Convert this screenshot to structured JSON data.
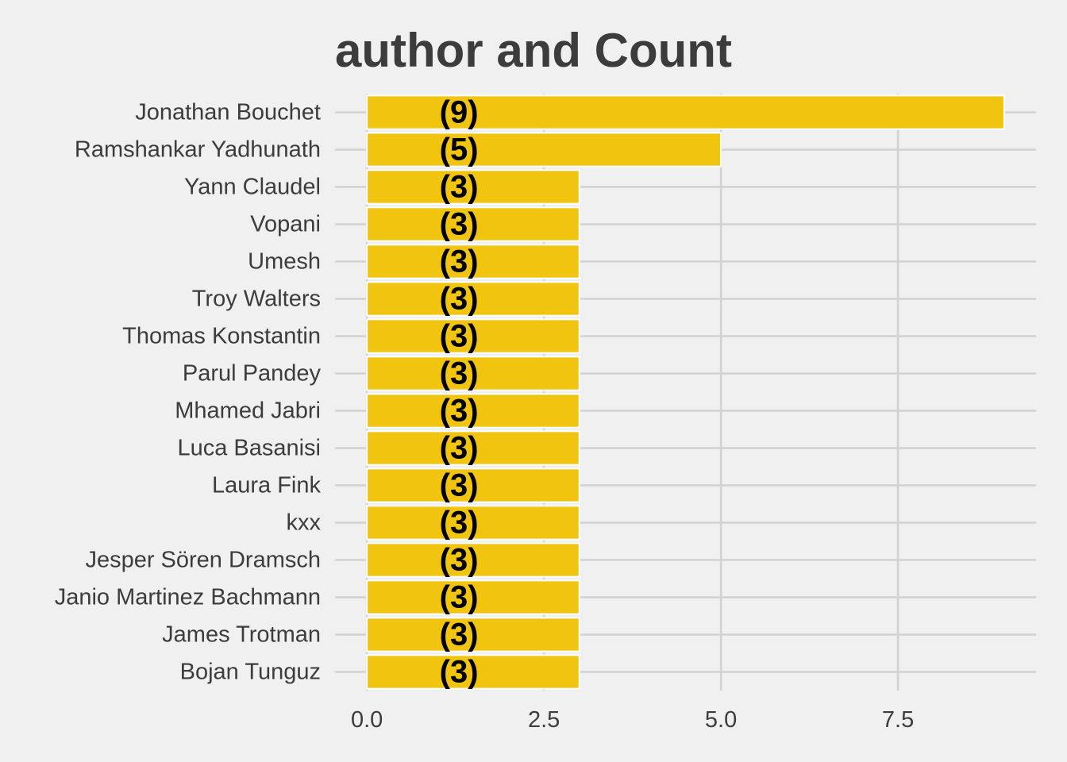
{
  "chart_data": {
    "type": "bar",
    "orientation": "horizontal",
    "title": "author and Count",
    "xlabel": "",
    "ylabel": "",
    "categories": [
      "Jonathan Bouchet",
      "Ramshankar Yadhunath",
      "Yann Claudel",
      "Vopani",
      "Umesh",
      "Troy Walters",
      "Thomas Konstantin",
      "Parul Pandey",
      "Mhamed Jabri",
      "Luca Basanisi",
      "Laura Fink",
      "kxx",
      "Jesper Sören Dramsch",
      "Janio Martinez Bachmann",
      "James Trotman",
      "Bojan Tunguz"
    ],
    "values": [
      9,
      5,
      3,
      3,
      3,
      3,
      3,
      3,
      3,
      3,
      3,
      3,
      3,
      3,
      3,
      3
    ],
    "data_labels": [
      "(9)",
      "(5)",
      "(3)",
      "(3)",
      "(3)",
      "(3)",
      "(3)",
      "(3)",
      "(3)",
      "(3)",
      "(3)",
      "(3)",
      "(3)",
      "(3)",
      "(3)",
      "(3)"
    ],
    "xticks": [
      "0.0",
      "2.5",
      "5.0",
      "7.5"
    ],
    "xtick_values": [
      0,
      2.5,
      5,
      7.5
    ],
    "xlim": [
      -0.45,
      9.45
    ],
    "grid": true,
    "bar_color": "#f1c40f",
    "bar_outline_color": "#ffffff",
    "background_color": "#f0f0f0"
  }
}
